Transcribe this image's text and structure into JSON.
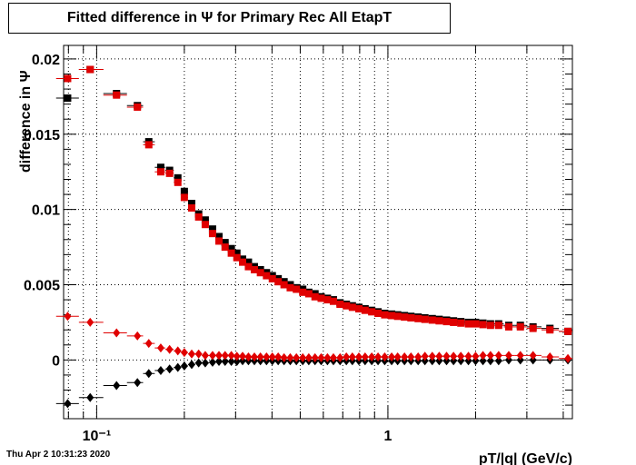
{
  "title": "Fitted difference in  Ψ  for Primary Rec All EtapT",
  "timestamp": "Thu Apr  2 10:31:23 2020",
  "chart_data": {
    "type": "scatter",
    "title": "Fitted difference in  Ψ  for Primary Rec All EtapT",
    "xlabel": "pT/|q| (GeV/c)",
    "ylabel": "difference in  Ψ",
    "xscale": "log",
    "xlim": [
      0.077,
      4.3
    ],
    "ylim": [
      -0.0039,
      0.0209
    ],
    "grid": true,
    "y_tick_labels": [
      "0",
      "0.005",
      "0.01",
      "0.015",
      "0.02"
    ],
    "x_tick_labels": [
      "10⁻¹",
      "1"
    ],
    "colors": {
      "series_black": "#000000",
      "series_red": "#e00000"
    },
    "series": [
      {
        "color": "black",
        "marker": "square",
        "x": [
          0.0795,
          0.095,
          0.117,
          0.138,
          0.151,
          0.166,
          0.178,
          0.19,
          0.2,
          0.212,
          0.224,
          0.236,
          0.25,
          0.263,
          0.276,
          0.29,
          0.303,
          0.317,
          0.332,
          0.348,
          0.365,
          0.383,
          0.401,
          0.42,
          0.44,
          0.462,
          0.485,
          0.51,
          0.535,
          0.562,
          0.59,
          0.62,
          0.65,
          0.685,
          0.72,
          0.755,
          0.795,
          0.835,
          0.88,
          0.925,
          0.975,
          1.03,
          1.08,
          1.14,
          1.2,
          1.27,
          1.34,
          1.42,
          1.5,
          1.59,
          1.68,
          1.78,
          1.89,
          2.0,
          2.12,
          2.25,
          2.4,
          2.6,
          2.85,
          3.15,
          3.6,
          4.15
        ],
        "y": [
          0.0174,
          0.0193,
          0.0177,
          0.0169,
          0.0145,
          0.0128,
          0.0126,
          0.0121,
          0.0112,
          0.0104,
          0.0097,
          0.0093,
          0.0087,
          0.0082,
          0.0078,
          0.0074,
          0.0071,
          0.0067,
          0.0065,
          0.0062,
          0.006,
          0.0058,
          0.0056,
          0.0054,
          0.0052,
          0.005,
          0.0048,
          0.0047,
          0.0045,
          0.0044,
          0.0042,
          0.0041,
          0.004,
          0.0038,
          0.0037,
          0.0036,
          0.0035,
          0.0034,
          0.0033,
          0.0032,
          0.0031,
          0.00305,
          0.003,
          0.00295,
          0.0029,
          0.00285,
          0.0028,
          0.00275,
          0.0027,
          0.00265,
          0.0026,
          0.00255,
          0.0025,
          0.0025,
          0.00245,
          0.0024,
          0.0024,
          0.0023,
          0.0023,
          0.0022,
          0.0021,
          0.0019
        ]
      },
      {
        "color": "red",
        "marker": "square",
        "x": [
          0.0795,
          0.095,
          0.117,
          0.138,
          0.151,
          0.166,
          0.178,
          0.19,
          0.2,
          0.212,
          0.224,
          0.236,
          0.25,
          0.263,
          0.276,
          0.29,
          0.303,
          0.317,
          0.332,
          0.348,
          0.365,
          0.383,
          0.401,
          0.42,
          0.44,
          0.462,
          0.485,
          0.51,
          0.535,
          0.562,
          0.59,
          0.62,
          0.65,
          0.685,
          0.72,
          0.755,
          0.795,
          0.835,
          0.88,
          0.925,
          0.975,
          1.03,
          1.08,
          1.14,
          1.2,
          1.27,
          1.34,
          1.42,
          1.5,
          1.59,
          1.68,
          1.78,
          1.89,
          2.0,
          2.12,
          2.25,
          2.4,
          2.6,
          2.85,
          3.15,
          3.6,
          4.15
        ],
        "y": [
          0.0187,
          0.0193,
          0.0176,
          0.0168,
          0.0143,
          0.0125,
          0.0124,
          0.0118,
          0.0108,
          0.0101,
          0.0095,
          0.009,
          0.0084,
          0.0079,
          0.0075,
          0.0071,
          0.0068,
          0.0065,
          0.0062,
          0.006,
          0.0058,
          0.0056,
          0.0054,
          0.0052,
          0.005,
          0.0048,
          0.0047,
          0.0045,
          0.0044,
          0.0042,
          0.0041,
          0.004,
          0.0039,
          0.0037,
          0.0036,
          0.0035,
          0.0034,
          0.0033,
          0.0032,
          0.0031,
          0.003,
          0.00295,
          0.0029,
          0.00285,
          0.0028,
          0.00275,
          0.0027,
          0.00265,
          0.0026,
          0.00255,
          0.0025,
          0.00245,
          0.0024,
          0.0024,
          0.00235,
          0.0023,
          0.0023,
          0.0022,
          0.0022,
          0.0021,
          0.002,
          0.0019
        ]
      },
      {
        "color": "black",
        "marker": "diamond",
        "x": [
          0.0795,
          0.095,
          0.117,
          0.138,
          0.151,
          0.166,
          0.178,
          0.19,
          0.2,
          0.212,
          0.224,
          0.236,
          0.25,
          0.263,
          0.276,
          0.29,
          0.303,
          0.317,
          0.332,
          0.348,
          0.365,
          0.383,
          0.401,
          0.42,
          0.44,
          0.462,
          0.485,
          0.51,
          0.535,
          0.562,
          0.59,
          0.62,
          0.65,
          0.685,
          0.72,
          0.755,
          0.795,
          0.835,
          0.88,
          0.925,
          0.975,
          1.03,
          1.08,
          1.14,
          1.2,
          1.27,
          1.34,
          1.42,
          1.5,
          1.59,
          1.68,
          1.78,
          1.89,
          2.0,
          2.12,
          2.25,
          2.4,
          2.6,
          2.85,
          3.15,
          3.6,
          4.15
        ],
        "y": [
          -0.0029,
          -0.0025,
          -0.0017,
          -0.0015,
          -0.0009,
          -0.0007,
          -0.0006,
          -0.0005,
          -0.0004,
          -0.0003,
          -0.0002,
          -0.0002,
          -0.00015,
          -0.0001,
          -0.0001,
          -0.0001,
          -0.0001,
          -5e-05,
          -5e-05,
          -5e-05,
          -5e-05,
          -5e-05,
          -5e-05,
          -5e-05,
          -5e-05,
          -5e-05,
          -5e-05,
          -5e-05,
          -5e-05,
          -5e-05,
          -5e-05,
          -5e-05,
          -5e-05,
          -5e-05,
          -5e-05,
          -5e-05,
          -5e-05,
          -5e-05,
          -5e-05,
          -5e-05,
          -5e-05,
          -5e-05,
          -5e-05,
          -5e-05,
          -5e-05,
          -5e-05,
          -5e-05,
          -5e-05,
          -5e-05,
          -5e-05,
          -5e-05,
          -5e-05,
          -5e-05,
          -5e-05,
          -5e-05,
          -5e-05,
          -5e-05,
          0.0,
          0.0,
          0.0,
          0.0,
          0.0
        ]
      },
      {
        "color": "red",
        "marker": "diamond",
        "x": [
          0.0795,
          0.095,
          0.117,
          0.138,
          0.151,
          0.166,
          0.178,
          0.19,
          0.2,
          0.212,
          0.224,
          0.236,
          0.25,
          0.263,
          0.276,
          0.29,
          0.303,
          0.317,
          0.332,
          0.348,
          0.365,
          0.383,
          0.401,
          0.42,
          0.44,
          0.462,
          0.485,
          0.51,
          0.535,
          0.562,
          0.59,
          0.62,
          0.65,
          0.685,
          0.72,
          0.755,
          0.795,
          0.835,
          0.88,
          0.925,
          0.975,
          1.03,
          1.08,
          1.14,
          1.2,
          1.27,
          1.34,
          1.42,
          1.5,
          1.59,
          1.68,
          1.78,
          1.89,
          2.0,
          2.12,
          2.25,
          2.4,
          2.6,
          2.85,
          3.15,
          3.6,
          4.15
        ],
        "y": [
          0.0029,
          0.0025,
          0.0018,
          0.0016,
          0.0011,
          0.0008,
          0.0007,
          0.0006,
          0.0005,
          0.0004,
          0.0004,
          0.0003,
          0.0003,
          0.0003,
          0.0003,
          0.0003,
          0.00025,
          0.00025,
          0.0002,
          0.0002,
          0.0002,
          0.0002,
          0.0002,
          0.0002,
          0.00015,
          0.00015,
          0.00015,
          0.00015,
          0.00015,
          0.00015,
          0.00015,
          0.00015,
          0.00015,
          0.00015,
          0.0002,
          0.0002,
          0.0002,
          0.0002,
          0.0002,
          0.0002,
          0.0002,
          0.0002,
          0.0002,
          0.0002,
          0.0002,
          0.0002,
          0.00025,
          0.00025,
          0.00025,
          0.00025,
          0.00025,
          0.00025,
          0.00025,
          0.00025,
          0.0003,
          0.0003,
          0.0003,
          0.0003,
          0.0003,
          0.0003,
          0.0002,
          0.0001
        ]
      }
    ]
  }
}
